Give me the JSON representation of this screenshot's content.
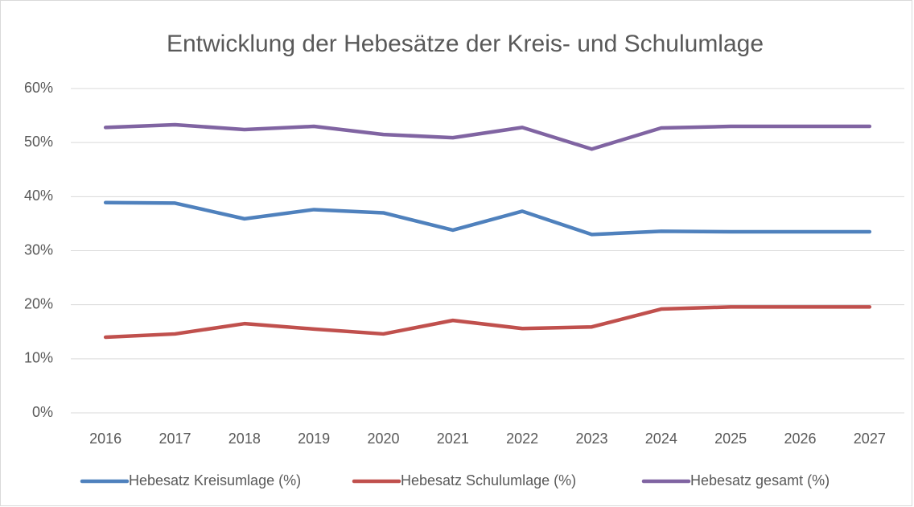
{
  "chart_data": {
    "type": "line",
    "title": "Entwicklung der Hebesätze der Kreis- und Schulumlage",
    "categories": [
      "2016",
      "2017",
      "2018",
      "2019",
      "2020",
      "2021",
      "2022",
      "2023",
      "2024",
      "2025",
      "2026",
      "2027"
    ],
    "series": [
      {
        "name": "Hebesatz Kreisumlage (%)",
        "color": "#4f81bd",
        "values": [
          38.9,
          38.8,
          35.9,
          37.6,
          37.0,
          33.8,
          37.3,
          33.0,
          33.6,
          33.5,
          33.5,
          33.5
        ]
      },
      {
        "name": "Hebesatz Schulumlage (%)",
        "color": "#c0504d",
        "values": [
          14.0,
          14.6,
          16.5,
          15.5,
          14.6,
          17.1,
          15.6,
          15.9,
          19.2,
          19.6,
          19.6,
          19.6
        ]
      },
      {
        "name": "Hebesatz gesamt (%)",
        "color": "#8064a2",
        "values": [
          52.8,
          53.3,
          52.4,
          53.0,
          51.5,
          50.9,
          52.8,
          48.8,
          52.7,
          53.0,
          53.0,
          53.0
        ]
      }
    ],
    "ylim": [
      0,
      60
    ],
    "yticks": [
      {
        "value": 0,
        "label": "0%"
      },
      {
        "value": 10,
        "label": "10%"
      },
      {
        "value": 20,
        "label": "20%"
      },
      {
        "value": 30,
        "label": "30%"
      },
      {
        "value": 40,
        "label": "40%"
      },
      {
        "value": 50,
        "label": "50%"
      },
      {
        "value": 60,
        "label": "60%"
      }
    ],
    "grid": true,
    "legend": "bottom"
  }
}
